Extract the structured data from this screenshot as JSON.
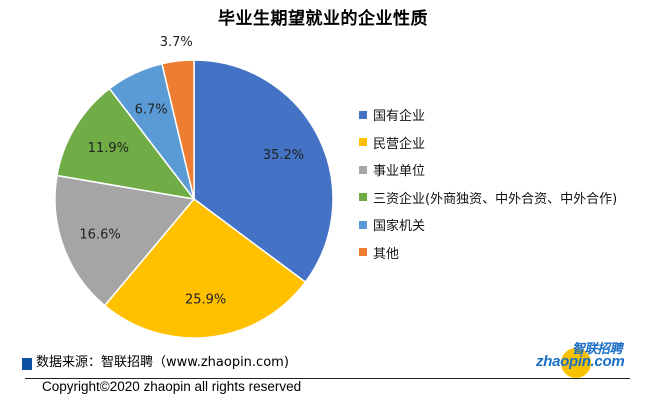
{
  "chart_data": {
    "type": "pie",
    "title": "毕业生期望就业的企业性质",
    "categories": [
      "国有企业",
      "民营企业",
      "事业单位",
      "三资企业(外商独资、中外合资、中外合作)",
      "国家机关",
      "其他"
    ],
    "values": [
      35.2,
      25.9,
      16.6,
      11.9,
      6.7,
      3.7
    ],
    "labels": [
      "35.2%",
      "25.9%",
      "16.6%",
      "11.9%",
      "6.7%",
      "3.7%"
    ],
    "colors": [
      "#4472c4",
      "#ffc000",
      "#a5a5a5",
      "#70ad47",
      "#5b9bd5",
      "#ed7d31"
    ],
    "unit": "%",
    "legend_position": "right",
    "start_angle": "12 o'clock, clockwise"
  },
  "header": {
    "title": "毕业生期望就业的企业性质"
  },
  "legend": {
    "items": [
      {
        "label": "国有企业",
        "color": "#4472c4"
      },
      {
        "label": "民营企业",
        "color": "#ffc000"
      },
      {
        "label": "事业单位",
        "color": "#a5a5a5"
      },
      {
        "label": "三资企业(外商独资、中外合资、中外合作)",
        "color": "#70ad47"
      },
      {
        "label": "国家机关",
        "color": "#5b9bd5"
      },
      {
        "label": "其他",
        "color": "#ed7d31"
      }
    ]
  },
  "footer": {
    "source": "数据来源：智联招聘（www.zhaopin.com)",
    "copyright": "Copyright©2020 zhaopin all rights reserved",
    "logo_cn": "智联招聘",
    "logo_en": "zhaopin.com"
  }
}
